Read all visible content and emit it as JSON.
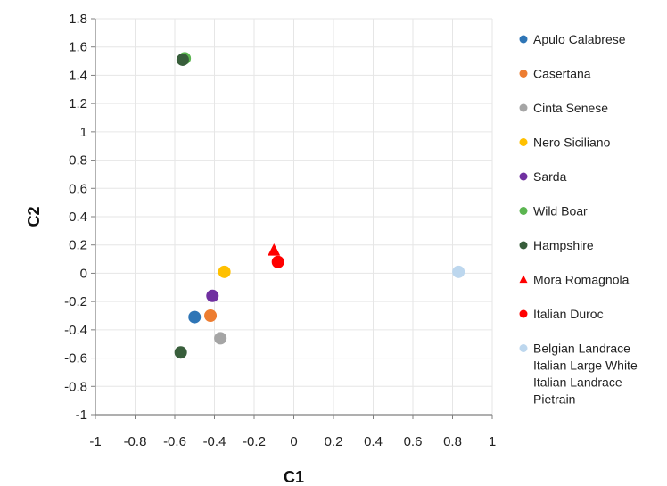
{
  "chart_data": {
    "type": "scatter",
    "xlabel": "C1",
    "ylabel": "C2",
    "xlim": [
      -1,
      1
    ],
    "ylim": [
      -1,
      1.8
    ],
    "x_ticks": [
      -1,
      -0.8,
      -0.6,
      -0.4,
      -0.2,
      0,
      0.2,
      0.4,
      0.6,
      0.8,
      1
    ],
    "y_ticks": [
      -1,
      -0.8,
      -0.6,
      -0.4,
      -0.2,
      0,
      0.2,
      0.4,
      0.6,
      0.8,
      1,
      1.2,
      1.4,
      1.6,
      1.8
    ],
    "x_tick_labels": [
      "-1",
      "-0.8",
      "-0.6",
      "-0.4",
      "-0.2",
      "0",
      "0.2",
      "0.4",
      "0.6",
      "0.8",
      "1"
    ],
    "y_tick_labels": [
      "-1",
      "-0.8",
      "-0.6",
      "-0.4",
      "-0.2",
      "0",
      "0.2",
      "0.4",
      "0.6",
      "0.8",
      "1",
      "1.2",
      "1.4",
      "1.6",
      "1.8"
    ],
    "grid": true,
    "legend_position": "right",
    "series": [
      {
        "name": "Apulo Calabrese",
        "marker": "circle",
        "color": "#2E75B6",
        "points": [
          {
            "x": -0.5,
            "y": -0.31
          }
        ]
      },
      {
        "name": "Casertana",
        "marker": "circle",
        "color": "#ED7D31",
        "points": [
          {
            "x": -0.42,
            "y": -0.3
          }
        ]
      },
      {
        "name": "Cinta Senese",
        "marker": "circle",
        "color": "#A5A5A5",
        "points": [
          {
            "x": -0.37,
            "y": -0.46
          }
        ]
      },
      {
        "name": "Nero Siciliano",
        "marker": "circle",
        "color": "#FFC000",
        "points": [
          {
            "x": -0.35,
            "y": 0.01
          }
        ]
      },
      {
        "name": "Sarda",
        "marker": "circle",
        "color": "#7030A0",
        "points": [
          {
            "x": -0.41,
            "y": -0.16
          }
        ]
      },
      {
        "name": "Wild Boar",
        "marker": "circle",
        "color": "#5BB550",
        "points": [
          {
            "x": -0.55,
            "y": 1.52
          }
        ]
      },
      {
        "name": "Hampshire",
        "marker": "circle",
        "color": "#385E3B",
        "points": [
          {
            "x": -0.56,
            "y": 1.51
          },
          {
            "x": -0.57,
            "y": -0.56
          }
        ]
      },
      {
        "name": "Mora Romagnola",
        "marker": "triangle",
        "color": "#FF0000",
        "points": [
          {
            "x": -0.1,
            "y": 0.16
          }
        ]
      },
      {
        "name": "Italian Duroc",
        "marker": "circle",
        "color": "#FF0000",
        "points": [
          {
            "x": -0.08,
            "y": 0.08
          }
        ]
      },
      {
        "name": "Belgian Landrace\nItalian Large White\nItalian Landrace\nPietrain",
        "marker": "circle",
        "color": "#BDD7EE",
        "points": [
          {
            "x": 0.83,
            "y": 0.01
          }
        ]
      }
    ]
  }
}
